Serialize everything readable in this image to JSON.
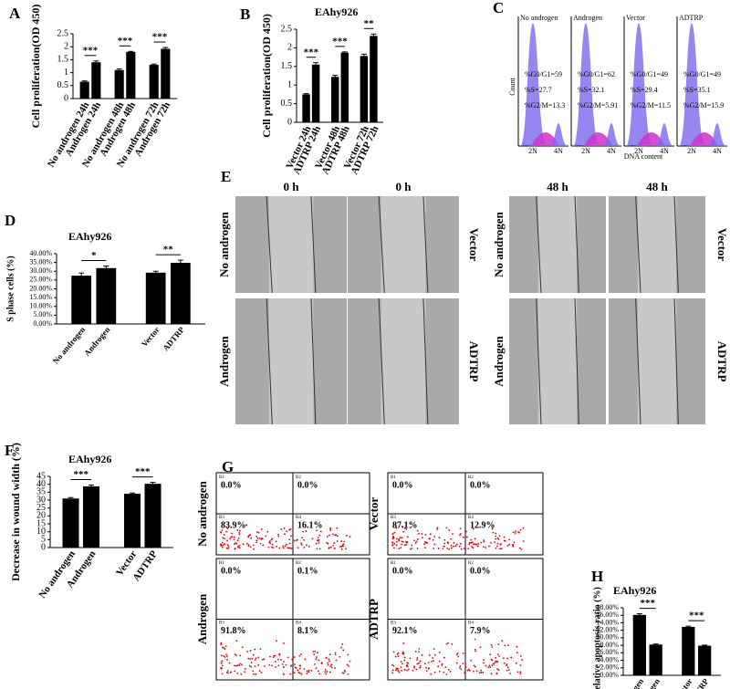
{
  "panel_letters": [
    "A",
    "B",
    "C",
    "D",
    "E",
    "F",
    "G",
    "H"
  ],
  "chart_data": [
    {
      "type": "bar",
      "y_label": "Cell proliferation(OD 450)",
      "categories": [
        "No androgen 24h",
        "Androgen 24h",
        "No androgen 48h",
        "Androgen 48h",
        "No androgen 72h",
        "Androgen 72h"
      ],
      "values": [
        0.65,
        1.4,
        1.1,
        1.8,
        1.3,
        1.92
      ],
      "errors": [
        0.03,
        0.05,
        0.04,
        0.02,
        0.03,
        0.05
      ],
      "significance": [
        "***",
        "***",
        "***"
      ],
      "color": "#000000",
      "ylim": [
        0,
        2.5
      ],
      "yticks": [
        0,
        0.5,
        1,
        1.5,
        2,
        2.5
      ]
    },
    {
      "type": "bar",
      "title": "EAhy926",
      "y_label": "Cell proliferation(OD 450)",
      "categories": [
        "Vector 24h",
        "ADTRP 24h",
        "Vector 48h",
        "ADTRP 48h",
        "Vector 72h",
        "ADTRP 72h"
      ],
      "values": [
        0.75,
        1.55,
        1.22,
        1.87,
        1.78,
        2.32
      ],
      "errors": [
        0.02,
        0.05,
        0.04,
        0.02,
        0.05,
        0.05
      ],
      "significance": [
        "***",
        "***",
        "**"
      ],
      "color": "#000000",
      "ylim": [
        0,
        2.5
      ],
      "yticks": [
        0,
        0.5,
        1,
        1.5,
        2,
        2.5
      ]
    },
    {
      "type": "bar",
      "title": "EAhy926",
      "y_label": "S phase cells (%)",
      "categories": [
        "No androgen",
        "Androgen",
        "Vector",
        "ADTRP"
      ],
      "values": [
        27.5,
        31.8,
        29.2,
        34.8
      ],
      "errors": [
        1.5,
        1.2,
        0.8,
        1.5
      ],
      "significance": [
        "*",
        "**"
      ],
      "color": "#000000",
      "ylim": [
        0,
        40
      ],
      "yticks": [
        {
          "value": 0,
          "label": "0.00%"
        },
        {
          "value": 5,
          "label": "5.00%"
        },
        {
          "value": 10,
          "label": "10.00%"
        },
        {
          "value": 15,
          "label": "15.00%"
        },
        {
          "value": 20,
          "label": "20.00%"
        },
        {
          "value": 25,
          "label": "25.00%"
        },
        {
          "value": 30,
          "label": "30.00%"
        },
        {
          "value": 35,
          "label": "35.00%"
        },
        {
          "value": 40,
          "label": "40.00%"
        }
      ]
    },
    {
      "type": "bar",
      "title": "EAhy926",
      "y_label": "Decrease in wound width (%)",
      "categories": [
        "No androgen",
        "Androgen",
        "Vector",
        "ADTRP"
      ],
      "values": [
        31,
        38.7,
        34,
        40.3
      ],
      "errors": [
        0.6,
        0.8,
        0.5,
        0.9
      ],
      "significance": [
        "***",
        "***"
      ],
      "color": "#000000",
      "ylim": [
        0,
        45
      ],
      "yticks": [
        0,
        5,
        10,
        15,
        20,
        25,
        30,
        35,
        40,
        45
      ]
    },
    {
      "type": "bar",
      "title": "EAhy926",
      "y_label": "Relative apoptosis ratio (%)",
      "categories": [
        "No androgen",
        "Androgen",
        "Vector",
        "ADTRP"
      ],
      "values": [
        16.1,
        8.2,
        12.9,
        7.9
      ],
      "errors": [
        0.3,
        0.15,
        0.2,
        0.15
      ],
      "significance": [
        "***",
        "***"
      ],
      "color": "#000000",
      "ylim": [
        0,
        18
      ],
      "yticks": [
        {
          "value": 0,
          "label": "0.00%"
        },
        {
          "value": 2,
          "label": "2.00%"
        },
        {
          "value": 4,
          "label": "4.00%"
        },
        {
          "value": 6,
          "label": "6.00%"
        },
        {
          "value": 8,
          "label": "8.00%"
        },
        {
          "value": 10,
          "label": "10.00%"
        },
        {
          "value": 12,
          "label": "12.00%"
        },
        {
          "value": 14,
          "label": "14.00%"
        },
        {
          "value": 16,
          "label": "16.00%"
        },
        {
          "value": 18,
          "label": "18.00%"
        }
      ]
    }
  ],
  "cell_cycle": {
    "y_label": "Count",
    "x_label": "DNA content",
    "x_ticks": [
      "2N",
      "4N"
    ],
    "panels": [
      {
        "name": "No androgen",
        "stats": [
          "%G0/G1=59",
          "%S=27.7",
          "%G2/M=13.3"
        ]
      },
      {
        "name": "Androgen",
        "stats": [
          "%G0/G1=62",
          "%S=32.1",
          "%G2/M=5.91"
        ]
      },
      {
        "name": "Vector",
        "stats": [
          "%G0/G1=49",
          "%S=29.4",
          "%G2/M=11.5"
        ]
      },
      {
        "name": "ADTRP",
        "stats": [
          "%G0/G1=49",
          "%S=35.1",
          "%G2/M=15.9"
        ]
      }
    ]
  },
  "wound": {
    "blocks": [
      {
        "times": [
          "0 h",
          "0 h"
        ],
        "left_labels": [
          "No androgen",
          "Androgen"
        ],
        "right_labels": [
          "Vector",
          "ADTRP"
        ]
      },
      {
        "times": [
          "48 h",
          "48 h"
        ],
        "left_labels": [
          "No androgen",
          "Androgen"
        ],
        "right_labels": [
          "Vector",
          "ADTRP"
        ]
      }
    ]
  },
  "apoptosis": {
    "quadrant_ids": [
      "B1",
      "B2",
      "B3",
      "B4"
    ],
    "plots": [
      {
        "name": "No androgen",
        "quadrants": [
          "0.0%",
          "0.0%",
          "83.9%",
          "16.1%"
        ]
      },
      {
        "name": "Vector",
        "quadrants": [
          "0.0%",
          "0.0%",
          "87.1%",
          "12.9%"
        ]
      },
      {
        "name": "Androgen",
        "quadrants": [
          "0.0%",
          "0.1%",
          "91.8%",
          "8.1%"
        ]
      },
      {
        "name": "ADTRP",
        "quadrants": [
          "0.0%",
          "0.0%",
          "92.1%",
          "7.9%"
        ]
      }
    ]
  }
}
